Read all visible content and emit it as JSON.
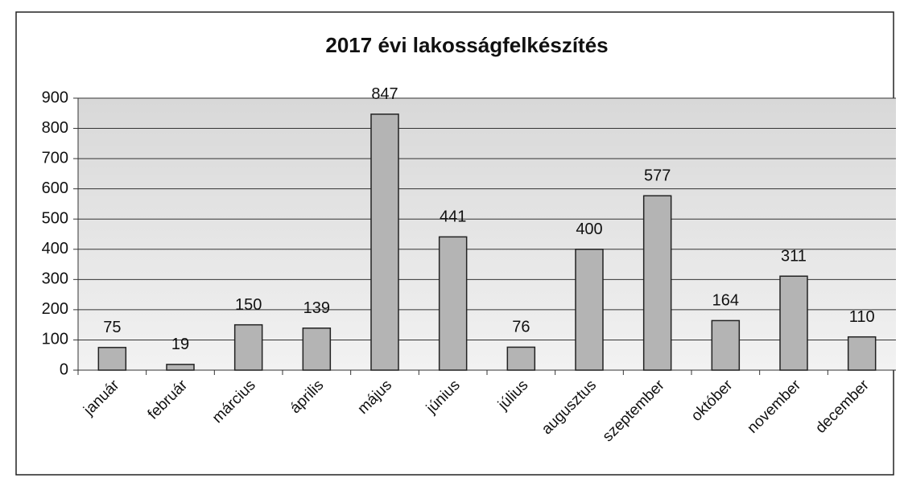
{
  "chart_data": {
    "type": "bar",
    "title": "2017 évi lakosságfelkészítés",
    "categories": [
      "január",
      "február",
      "március",
      "április",
      "május",
      "június",
      "július",
      "augusztus",
      "szeptember",
      "október",
      "november",
      "december"
    ],
    "values": [
      75,
      19,
      150,
      139,
      847,
      441,
      76,
      400,
      577,
      164,
      311,
      110
    ],
    "color": "#b4b4b4",
    "ylim": [
      0,
      900
    ],
    "yticks": [
      0,
      100,
      200,
      300,
      400,
      500,
      600,
      700,
      800,
      900
    ],
    "grid": true
  }
}
